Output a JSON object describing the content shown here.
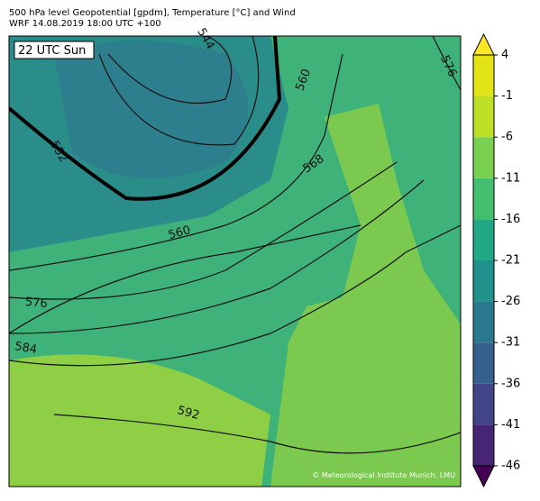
{
  "header": {
    "line1": "500 hPa level Geopotential [gpdm], Temperature [°C] and Wind",
    "line2": "WRF 14.08.2019 18:00 UTC +100"
  },
  "map": {
    "time_label": "22 UTC Sun",
    "copyright": "© Meteorological Institute Munich, LMU",
    "contour_labels": [
      544,
      552,
      560,
      568,
      560,
      576,
      576,
      584,
      592
    ]
  },
  "colorbar": {
    "ticks": [
      4,
      -1,
      -6,
      -11,
      -16,
      -21,
      -26,
      -31,
      -36,
      -41,
      -46
    ],
    "colors": [
      "#440154",
      "#482475",
      "#414487",
      "#355f8d",
      "#2a788e",
      "#21918c",
      "#22a884",
      "#44bf70",
      "#7ad151",
      "#bddf26",
      "#e2e418",
      "#fde725"
    ]
  }
}
